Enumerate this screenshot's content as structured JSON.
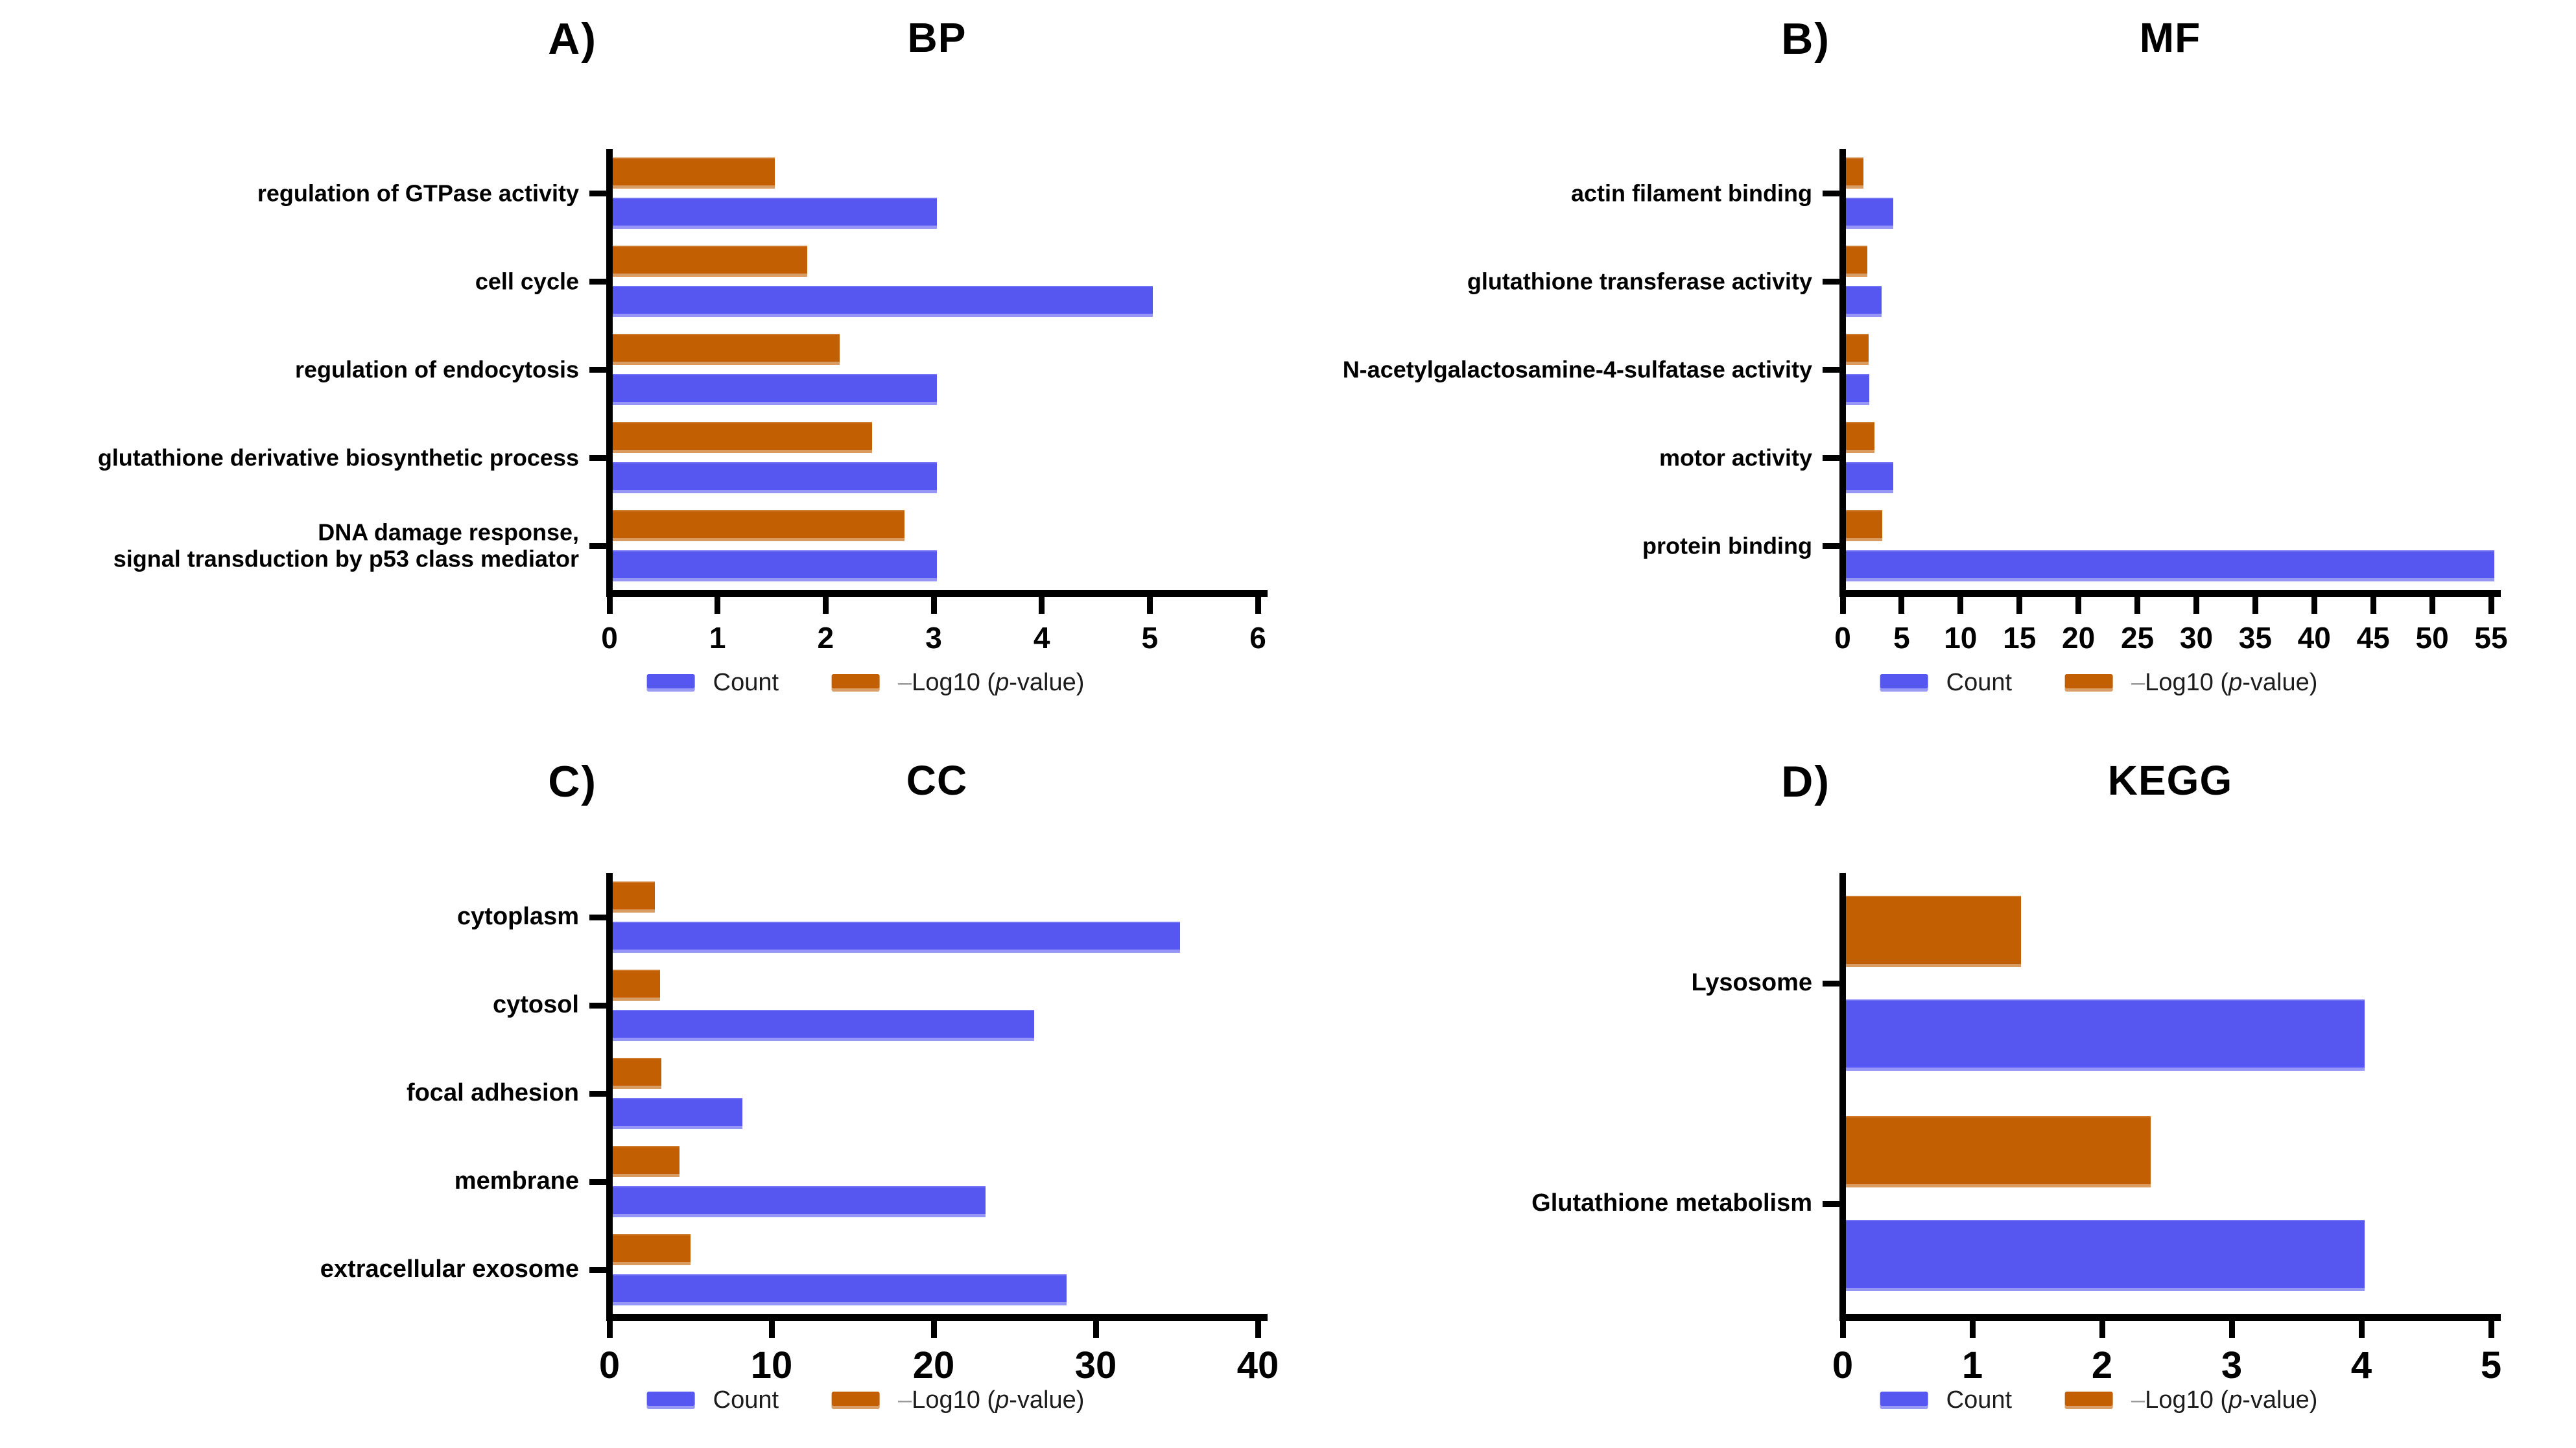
{
  "figure": {
    "background": "#ffffff",
    "description": "Four-panel GO and KEGG enrichment horizontal bar charts"
  },
  "colors": {
    "count": "#5656F0",
    "pvalue": "#C15F02",
    "axis": "#000000",
    "legend_text": "#1c1c1c",
    "legend_dash_gray": "#9b9b9b"
  },
  "legend": {
    "count_label": "Count",
    "pvalue_dash": "–",
    "pvalue_prefix": "Log10 (",
    "pvalue_italic": "p",
    "pvalue_suffix": "-value)"
  },
  "chart_data": [
    {
      "id": "bp",
      "panel_letter": "A)",
      "title": "BP",
      "type": "bar",
      "orientation": "horizontal",
      "grid": false,
      "legend_position": "bottom",
      "categories": [
        "regulation of GTPase activity",
        "cell cycle",
        "regulation of endocytosis",
        "glutathione derivative biosynthetic process",
        "DNA damage response,\nsignal transduction by p53 class mediator"
      ],
      "series": [
        {
          "name": "Count",
          "color": "#5656F0",
          "values": [
            3,
            5,
            3,
            3,
            3
          ]
        },
        {
          "name": "-Log10 (p-value)",
          "color": "#C15F02",
          "values": [
            1.5,
            1.8,
            2.1,
            2.4,
            2.7
          ]
        }
      ],
      "xlim": [
        0,
        6
      ],
      "xticks": [
        0,
        1,
        2,
        3,
        4,
        5,
        6
      ]
    },
    {
      "id": "mf",
      "panel_letter": "B)",
      "title": "MF",
      "type": "bar",
      "orientation": "horizontal",
      "grid": false,
      "legend_position": "bottom",
      "categories": [
        "actin filament binding",
        "glutathione transferase activity",
        "N-acetylgalactosamine-4-sulfatase activity",
        "motor activity",
        "protein binding"
      ],
      "series": [
        {
          "name": "Count",
          "color": "#5656F0",
          "values": [
            4,
            3,
            2,
            4,
            55
          ]
        },
        {
          "name": "-Log10 (p-value)",
          "color": "#C15F02",
          "values": [
            1.5,
            1.8,
            1.9,
            2.4,
            3.1
          ]
        }
      ],
      "xlim": [
        0,
        55
      ],
      "xticks": [
        0,
        5,
        10,
        15,
        20,
        25,
        30,
        35,
        40,
        45,
        50,
        55
      ]
    },
    {
      "id": "cc",
      "panel_letter": "C)",
      "title": "CC",
      "type": "bar",
      "orientation": "horizontal",
      "grid": false,
      "legend_position": "bottom",
      "categories": [
        "cytoplasm",
        "cytosol",
        "focal adhesion",
        "membrane",
        "extracellular exosome"
      ],
      "series": [
        {
          "name": "Count",
          "color": "#5656F0",
          "values": [
            35,
            26,
            8,
            23,
            28
          ]
        },
        {
          "name": "-Log10 (p-value)",
          "color": "#C15F02",
          "values": [
            2.6,
            2.9,
            3.0,
            4.1,
            4.8
          ]
        }
      ],
      "xlim": [
        0,
        40
      ],
      "xticks": [
        0,
        10,
        20,
        30,
        40
      ]
    },
    {
      "id": "kegg",
      "panel_letter": "D)",
      "title": "KEGG",
      "type": "bar",
      "orientation": "horizontal",
      "grid": false,
      "legend_position": "bottom",
      "categories": [
        "Lysosome",
        "Glutathione metabolism"
      ],
      "series": [
        {
          "name": "Count",
          "color": "#5656F0",
          "values": [
            4,
            4
          ]
        },
        {
          "name": "-Log10 (p-value)",
          "color": "#C15F02",
          "values": [
            1.35,
            2.35
          ]
        }
      ],
      "xlim": [
        0,
        5
      ],
      "xticks": [
        0,
        1,
        2,
        3,
        4,
        5
      ]
    }
  ]
}
